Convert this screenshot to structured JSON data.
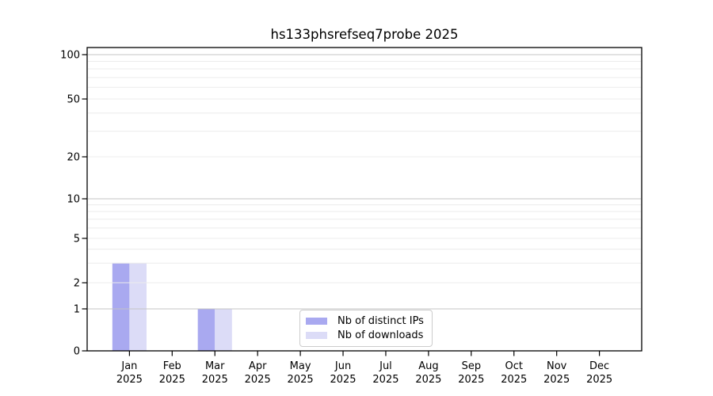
{
  "chart_data": {
    "type": "bar",
    "title": "hs133phsrefseq7probe 2025",
    "xlabel": "",
    "ylabel": "",
    "categories": [
      {
        "month": "Jan",
        "year": "2025"
      },
      {
        "month": "Feb",
        "year": "2025"
      },
      {
        "month": "Mar",
        "year": "2025"
      },
      {
        "month": "Apr",
        "year": "2025"
      },
      {
        "month": "May",
        "year": "2025"
      },
      {
        "month": "Jun",
        "year": "2025"
      },
      {
        "month": "Jul",
        "year": "2025"
      },
      {
        "month": "Aug",
        "year": "2025"
      },
      {
        "month": "Sep",
        "year": "2025"
      },
      {
        "month": "Oct",
        "year": "2025"
      },
      {
        "month": "Nov",
        "year": "2025"
      },
      {
        "month": "Dec",
        "year": "2025"
      }
    ],
    "series": [
      {
        "name": "Nb of distinct IPs",
        "color": "#a9a9f0",
        "values": [
          3,
          0,
          1,
          0,
          0,
          0,
          0,
          0,
          0,
          0,
          0,
          0
        ]
      },
      {
        "name": "Nb of downloads",
        "color": "#dcdcf7",
        "values": [
          3,
          0,
          1,
          0,
          0,
          0,
          0,
          0,
          0,
          0,
          0,
          0
        ]
      }
    ],
    "yscale": "log-like (linear 0-1, log above 1)",
    "ylim": [
      0,
      111
    ],
    "y_ticks": [
      0,
      1,
      2,
      5,
      10,
      20,
      50,
      100
    ],
    "y_major_gridlines": [
      1,
      10,
      100
    ],
    "y_minor_gridlines": [
      2,
      3,
      4,
      5,
      6,
      7,
      8,
      9,
      20,
      30,
      40,
      50,
      60,
      70,
      80,
      90
    ],
    "grid": "horizontal only, drawn over bars",
    "legend": {
      "position": "lower center",
      "entries": [
        "Nb of distinct IPs",
        "Nb of downloads"
      ]
    },
    "colors": {
      "axis": "#000000",
      "major_grid": "#c4c4c4",
      "minor_grid": "#ececec",
      "background": "#ffffff"
    }
  }
}
